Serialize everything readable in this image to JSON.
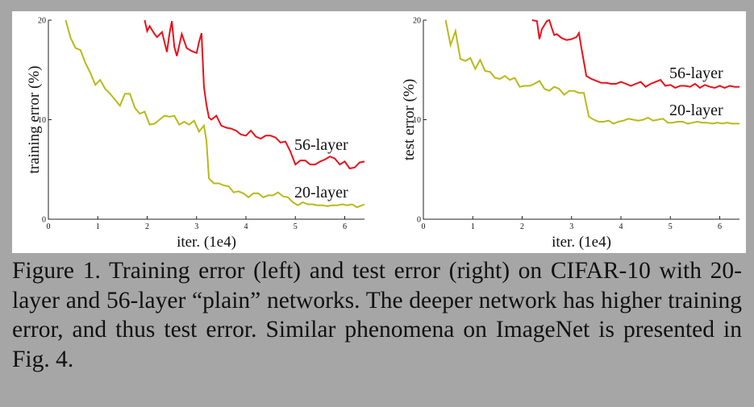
{
  "caption": "Figure 1. Training error (left) and test error (right) on CIFAR-10 with 20-layer and 56-layer “plain” networks. The deeper network has higher training error, and thus test error.  Similar phenomena on ImageNet is presented in Fig. 4.",
  "chart_data": [
    {
      "type": "line",
      "title": "",
      "xlabel": "iter. (1e4)",
      "ylabel": "training error (%)",
      "xlim": [
        0,
        6.4
      ],
      "ylim": [
        0,
        20
      ],
      "xticks": [
        "0",
        "1",
        "2",
        "3",
        "4",
        "5",
        "6"
      ],
      "yticks": [
        "0",
        "10",
        "20"
      ],
      "grid": false,
      "series": [
        {
          "name": "56-layer",
          "color": "#e8101a",
          "x": [
            1.95,
            2.0,
            2.05,
            2.1,
            2.15,
            2.2,
            2.3,
            2.4,
            2.45,
            2.5,
            2.55,
            2.6,
            2.7,
            2.8,
            2.9,
            3.0,
            3.05,
            3.1,
            3.15,
            3.2,
            3.25,
            3.3,
            3.4,
            3.5,
            3.6,
            3.7,
            3.8,
            3.9,
            4.0,
            4.1,
            4.2,
            4.3,
            4.4,
            4.5,
            4.6,
            4.7,
            4.8,
            4.9,
            5.0,
            5.1,
            5.2,
            5.3,
            5.4,
            5.5,
            5.6,
            5.7,
            5.8,
            5.9,
            6.0,
            6.1,
            6.2,
            6.3,
            6.4
          ],
          "y": [
            20,
            18.9,
            19.4,
            19.0,
            18.6,
            18.3,
            18.8,
            16.8,
            18.6,
            19.9,
            17.3,
            16.4,
            18.6,
            17.2,
            16.9,
            16.7,
            17.8,
            18.7,
            13.3,
            11.5,
            10.2,
            10.0,
            10.4,
            9.4,
            9.2,
            9.1,
            8.9,
            8.5,
            8.4,
            8.9,
            8.3,
            8.1,
            8.4,
            8.4,
            8.2,
            7.7,
            7.8,
            6.8,
            5.5,
            5.9,
            5.9,
            5.5,
            5.5,
            5.8,
            6.0,
            6.3,
            6.1,
            5.5,
            5.8,
            5.1,
            5.2,
            5.7,
            5.8
          ]
        },
        {
          "name": "20-layer",
          "color": "#b9b91a",
          "x": [
            0.35,
            0.45,
            0.55,
            0.65,
            0.75,
            0.85,
            0.95,
            1.05,
            1.15,
            1.25,
            1.35,
            1.45,
            1.55,
            1.65,
            1.75,
            1.85,
            1.95,
            2.05,
            2.15,
            2.25,
            2.35,
            2.45,
            2.55,
            2.65,
            2.75,
            2.85,
            2.95,
            3.05,
            3.15,
            3.2,
            3.25,
            3.35,
            3.45,
            3.55,
            3.65,
            3.75,
            3.85,
            3.95,
            4.05,
            4.15,
            4.25,
            4.35,
            4.45,
            4.55,
            4.65,
            4.75,
            4.85,
            4.95,
            5.05,
            5.15,
            5.25,
            5.35,
            5.45,
            5.55,
            5.65,
            5.75,
            5.85,
            5.95,
            6.05,
            6.15,
            6.25,
            6.4
          ],
          "y": [
            20,
            18.2,
            17.2,
            17.0,
            15.7,
            14.7,
            13.5,
            14.0,
            13.1,
            12.6,
            12.0,
            11.4,
            12.6,
            12.6,
            11.2,
            10.6,
            10.8,
            9.5,
            9.6,
            10.0,
            10.4,
            10.3,
            10.4,
            9.5,
            9.8,
            9.5,
            9.9,
            8.8,
            9.4,
            7.9,
            4.1,
            3.6,
            3.6,
            3.4,
            3.3,
            2.7,
            2.8,
            2.6,
            2.2,
            2.6,
            2.6,
            2.2,
            2.4,
            2.4,
            2.7,
            2.3,
            2.2,
            1.7,
            1.4,
            1.7,
            1.5,
            1.5,
            1.4,
            1.4,
            1.3,
            1.4,
            1.4,
            1.5,
            1.4,
            1.5,
            1.2,
            1.5
          ]
        }
      ]
    },
    {
      "type": "line",
      "title": "",
      "xlabel": "iter. (1e4)",
      "ylabel": "test error (%)",
      "xlim": [
        0,
        6.4
      ],
      "ylim": [
        0,
        20
      ],
      "xticks": [
        "0",
        "1",
        "2",
        "3",
        "4",
        "5",
        "6"
      ],
      "yticks": [
        "0",
        "10",
        "20"
      ],
      "grid": false,
      "series": [
        {
          "name": "56-layer",
          "color": "#e8101a",
          "x": [
            2.2,
            2.3,
            2.35,
            2.4,
            2.5,
            2.55,
            2.6,
            2.65,
            2.7,
            2.8,
            2.9,
            3.0,
            3.1,
            3.15,
            3.2,
            3.3,
            3.4,
            3.5,
            3.6,
            3.7,
            3.8,
            3.9,
            4.0,
            4.1,
            4.2,
            4.3,
            4.4,
            4.5,
            4.6,
            4.7,
            4.8,
            4.9,
            5.0,
            5.1,
            5.2,
            5.3,
            5.4,
            5.5,
            5.6,
            5.7,
            5.8,
            5.9,
            6.0,
            6.1,
            6.2,
            6.3,
            6.4
          ],
          "y": [
            20,
            19.9,
            18.1,
            19.1,
            19.9,
            20,
            19.2,
            18.5,
            18.6,
            18.2,
            18.0,
            18.1,
            18.3,
            18.7,
            17.2,
            14.4,
            14.1,
            13.9,
            13.7,
            13.7,
            13.6,
            13.6,
            13.8,
            13.6,
            13.4,
            13.6,
            13.8,
            13.3,
            13.6,
            13.8,
            14.0,
            13.4,
            13.5,
            13.2,
            13.4,
            13.4,
            13.3,
            13.6,
            13.2,
            13.5,
            13.3,
            13.2,
            13.4,
            13.2,
            13.4,
            13.3,
            13.3
          ]
        },
        {
          "name": "20-layer",
          "color": "#b9b91a",
          "x": [
            0.45,
            0.55,
            0.65,
            0.75,
            0.85,
            0.95,
            1.05,
            1.15,
            1.25,
            1.35,
            1.45,
            1.55,
            1.65,
            1.75,
            1.85,
            1.95,
            2.05,
            2.15,
            2.25,
            2.35,
            2.45,
            2.55,
            2.65,
            2.75,
            2.85,
            2.95,
            3.05,
            3.15,
            3.25,
            3.35,
            3.45,
            3.55,
            3.65,
            3.75,
            3.85,
            3.95,
            4.05,
            4.15,
            4.25,
            4.35,
            4.45,
            4.55,
            4.65,
            4.75,
            4.85,
            4.95,
            5.05,
            5.15,
            5.25,
            5.35,
            5.45,
            5.55,
            5.65,
            5.75,
            5.85,
            5.95,
            6.05,
            6.15,
            6.25,
            6.4
          ],
          "y": [
            20,
            17.5,
            18.9,
            16.1,
            15.9,
            16.2,
            15.1,
            16.0,
            14.9,
            14.8,
            14.2,
            14.1,
            14.4,
            14.0,
            14.2,
            13.3,
            13.4,
            13.4,
            13.6,
            13.9,
            13.1,
            12.9,
            13.3,
            13.1,
            12.5,
            12.9,
            12.9,
            12.7,
            12.7,
            10.3,
            10.0,
            9.8,
            9.8,
            9.9,
            9.6,
            9.8,
            9.9,
            10.1,
            10.0,
            9.9,
            10.0,
            10.2,
            9.9,
            10.0,
            10.1,
            9.7,
            9.7,
            9.8,
            9.8,
            9.6,
            9.7,
            9.8,
            9.7,
            9.7,
            9.6,
            9.7,
            9.6,
            9.7,
            9.6,
            9.6
          ]
        }
      ]
    }
  ]
}
